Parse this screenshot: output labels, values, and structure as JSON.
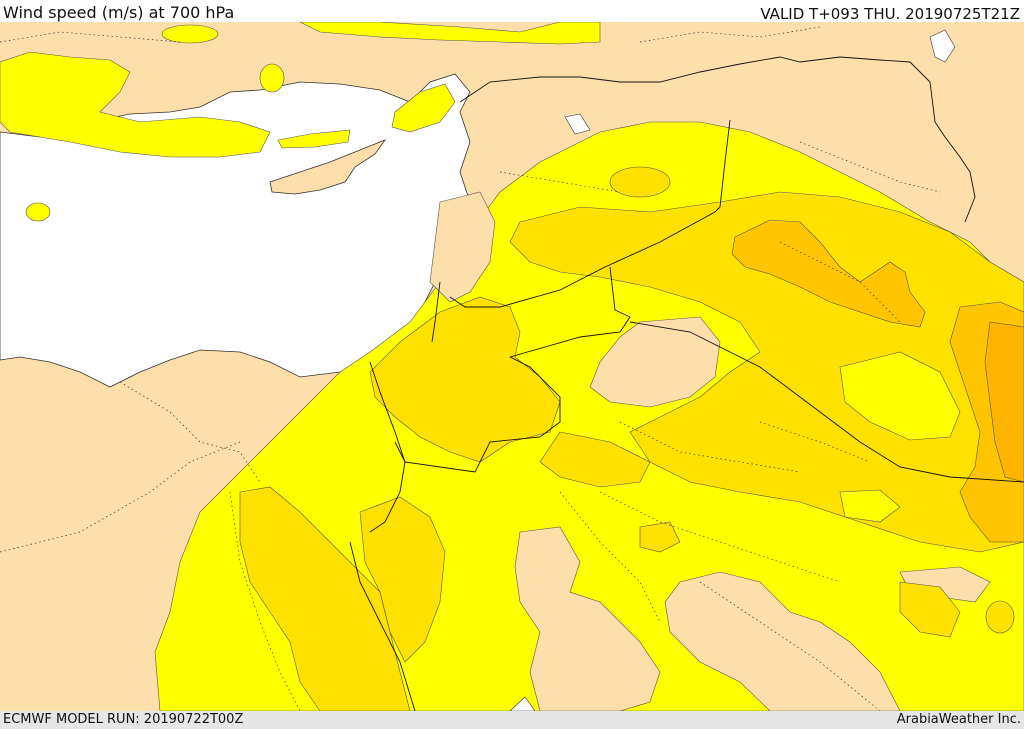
{
  "header": {
    "title": "Wind speed (m/s) at 700 hPa",
    "valid": "VALID T+093 THU. 20190725T21Z"
  },
  "footer": {
    "model_run": "ECMWF MODEL RUN: 20190722T00Z",
    "credit": "ArabiaWeather Inc."
  },
  "colors": {
    "land": "#fedeaa",
    "sea": "#ffffff",
    "band_1": "#ffff00",
    "band_2": "#ffe100",
    "band_3": "#ffc500",
    "band_4": "#ffb400",
    "border": "#000000"
  }
}
